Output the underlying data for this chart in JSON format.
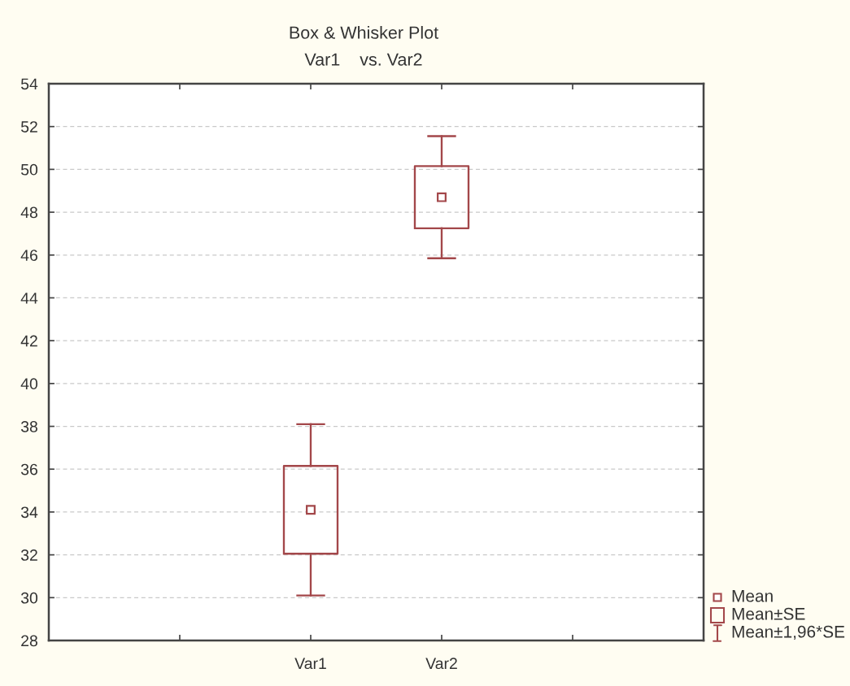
{
  "chart_data": {
    "type": "box",
    "title": "Box & Whisker Plot",
    "subtitle": "Var1    vs. Var2",
    "categories": [
      null,
      "Var1",
      "Var2",
      null
    ],
    "boxes": [
      null,
      {
        "low": 30.1,
        "q1": 32.05,
        "mean": 34.1,
        "q3": 36.15,
        "high": 38.1
      },
      {
        "low": 45.85,
        "q1": 47.25,
        "mean": 48.7,
        "q3": 50.15,
        "high": 51.55
      },
      null
    ],
    "colors": [
      "#a3474a",
      "#a3474a",
      "#a3474a",
      "#a3474a"
    ],
    "marker": "square",
    "annotations": [
      "Mean",
      "Mean±SE",
      "Mean±1,96*SE"
    ],
    "ylim": [
      28,
      54
    ],
    "yticks": [
      28,
      30,
      32,
      34,
      36,
      38,
      40,
      42,
      44,
      46,
      48,
      50,
      52,
      54
    ],
    "grid": "y"
  }
}
